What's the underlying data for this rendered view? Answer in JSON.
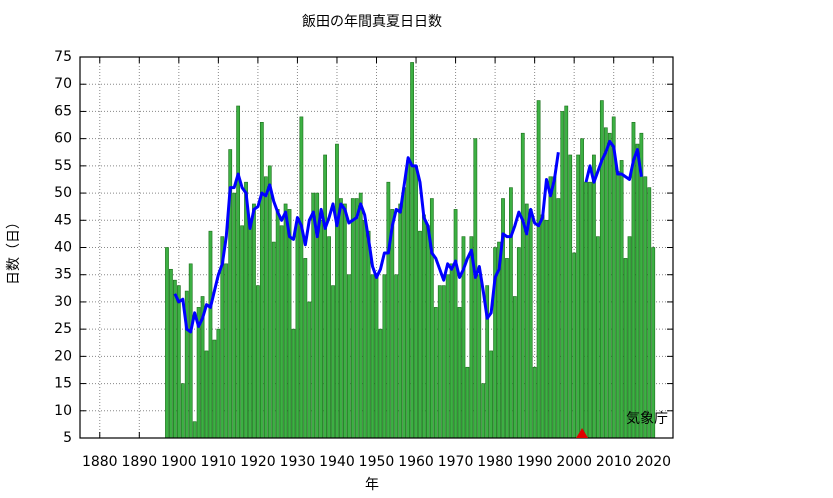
{
  "chart_data": {
    "type": "bar",
    "title": "飯田の年間真夏日日数",
    "xlabel": "年",
    "ylabel": "日数（日）",
    "annotation": "気象庁",
    "x": [
      1897,
      1898,
      1899,
      1900,
      1901,
      1902,
      1903,
      1904,
      1905,
      1906,
      1907,
      1908,
      1909,
      1910,
      1911,
      1912,
      1913,
      1914,
      1915,
      1916,
      1917,
      1918,
      1919,
      1920,
      1921,
      1922,
      1923,
      1924,
      1925,
      1926,
      1927,
      1928,
      1929,
      1930,
      1931,
      1932,
      1933,
      1934,
      1935,
      1936,
      1937,
      1938,
      1939,
      1940,
      1941,
      1942,
      1943,
      1944,
      1945,
      1946,
      1947,
      1948,
      1949,
      1950,
      1951,
      1952,
      1953,
      1954,
      1955,
      1956,
      1957,
      1958,
      1959,
      1960,
      1961,
      1962,
      1963,
      1964,
      1965,
      1966,
      1967,
      1968,
      1969,
      1970,
      1971,
      1972,
      1973,
      1974,
      1975,
      1976,
      1977,
      1978,
      1979,
      1980,
      1981,
      1982,
      1983,
      1984,
      1985,
      1986,
      1987,
      1988,
      1989,
      1990,
      1991,
      1992,
      1993,
      1994,
      1995,
      1996,
      1997,
      1998,
      1999,
      2000,
      2001,
      2002,
      2003,
      2004,
      2005,
      2006,
      2007,
      2008,
      2009,
      2010,
      2011,
      2012,
      2013,
      2014,
      2015,
      2016,
      2017,
      2018,
      2019,
      2020
    ],
    "series": [
      {
        "type": "bar",
        "color": "#3cb043",
        "edge": "#1a6e1a",
        "values": [
          40,
          36,
          34,
          33,
          15,
          32,
          37,
          8,
          29,
          31,
          21,
          43,
          23,
          25,
          42,
          37,
          58,
          50,
          66,
          44,
          52,
          45,
          48,
          33,
          63,
          53,
          55,
          41,
          47,
          44,
          48,
          47,
          25,
          45,
          64,
          38,
          30,
          50,
          50,
          45,
          57,
          42,
          33,
          59,
          49,
          48,
          35,
          49,
          49,
          50,
          45,
          43,
          35,
          35,
          25,
          35,
          52,
          47,
          35,
          48,
          51,
          56,
          74,
          55,
          43,
          46,
          44,
          49,
          29,
          33,
          33,
          35,
          37,
          47,
          29,
          42,
          18,
          42,
          60,
          35,
          15,
          33,
          21,
          40,
          41,
          49,
          38,
          51,
          31,
          40,
          61,
          48,
          47,
          18,
          67,
          46,
          45,
          53,
          53,
          49,
          65,
          66,
          57,
          39,
          57,
          60,
          52,
          52,
          57,
          42,
          67,
          62,
          61,
          64,
          54,
          56,
          38,
          42,
          63,
          59,
          61,
          53,
          51,
          40
        ]
      },
      {
        "type": "line",
        "color": "#0000ff",
        "values": [
          null,
          null,
          31.5,
          30,
          30.5,
          25,
          24.5,
          28,
          25.5,
          27,
          29.5,
          29,
          32,
          35,
          37,
          42,
          51,
          51,
          53.5,
          51,
          50,
          43.5,
          47,
          47.5,
          50,
          49.5,
          51.5,
          48.5,
          46.5,
          45,
          46.5,
          42,
          41.5,
          45.5,
          44,
          40.5,
          45,
          46.5,
          42,
          47,
          43.5,
          45.5,
          48,
          44,
          48,
          47,
          44.5,
          45,
          45.5,
          48,
          46,
          41.5,
          36.5,
          34.5,
          36,
          39,
          39,
          44,
          47,
          46.5,
          51.5,
          56.5,
          55,
          55,
          52,
          45.5,
          44,
          39,
          38,
          36,
          34,
          37,
          36,
          37.5,
          34.5,
          36,
          38,
          39.5,
          34.5,
          36.5,
          32,
          27,
          28,
          34.5,
          36,
          42.5,
          42,
          42,
          44,
          46.5,
          45,
          42.5,
          47,
          44.5,
          44,
          45.5,
          52.5,
          49.5,
          52.5,
          57.5,
          null,
          null,
          null,
          null,
          null,
          null,
          52,
          55,
          52,
          54,
          56,
          57.5,
          59.5,
          58.5,
          53.5,
          53.5,
          53,
          52.5,
          56,
          58,
          53,
          null,
          null,
          null
        ]
      }
    ],
    "marker": {
      "x": 2002,
      "color": "#e00000"
    },
    "xlim": [
      1875,
      2025
    ],
    "ylim": [
      5,
      75
    ],
    "xticks": [
      1880,
      1890,
      1900,
      1910,
      1920,
      1930,
      1940,
      1950,
      1960,
      1970,
      1980,
      1990,
      2000,
      2010,
      2020
    ],
    "yticks": [
      5,
      10,
      15,
      20,
      25,
      30,
      35,
      40,
      45,
      50,
      55,
      60,
      65,
      70,
      75
    ],
    "grid": true
  }
}
